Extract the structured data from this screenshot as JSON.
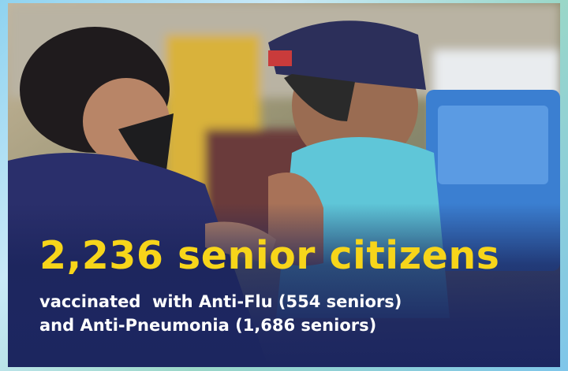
{
  "headline": "2,236 senior citizens",
  "details": [
    "vaccinated  with Anti-Flu (554 seniors)",
    "and Anti-Pneumonia (1,686 seniors)"
  ]
}
